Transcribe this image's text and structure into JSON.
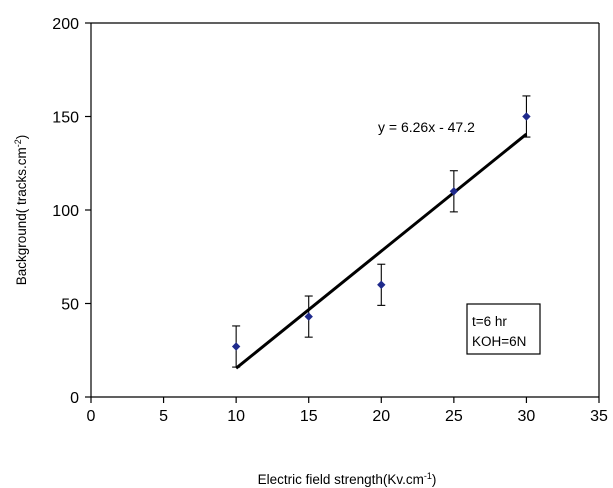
{
  "chart_data": {
    "type": "scatter",
    "xlabel_main": "Electric field strength(Kv.cm",
    "xlabel_sup": "-1",
    "xlabel_end": ")",
    "ylabel_main": "Background( tracks.cm",
    "ylabel_sup": "-2",
    "ylabel_end": ")",
    "xlim": [
      0,
      35
    ],
    "ylim": [
      0,
      200
    ],
    "x_ticks": [
      "0",
      "5",
      "10",
      "15",
      "20",
      "25",
      "30",
      "35"
    ],
    "y_ticks": [
      "0",
      "50",
      "100",
      "150",
      "200"
    ],
    "x": [
      10,
      15,
      20,
      25,
      30
    ],
    "y": [
      27,
      43,
      60,
      110,
      150
    ],
    "error_bars": [
      11,
      11,
      11,
      11,
      11
    ],
    "marker_color": "#1f2a8c",
    "fit_line": {
      "slope": 6.26,
      "intercept": -47.2,
      "x_range": [
        10,
        30
      ],
      "label": "y = 6.26x - 47.2"
    },
    "annotation_lines": [
      "t=6 hr",
      "KOH=6N"
    ],
    "grid": false
  }
}
